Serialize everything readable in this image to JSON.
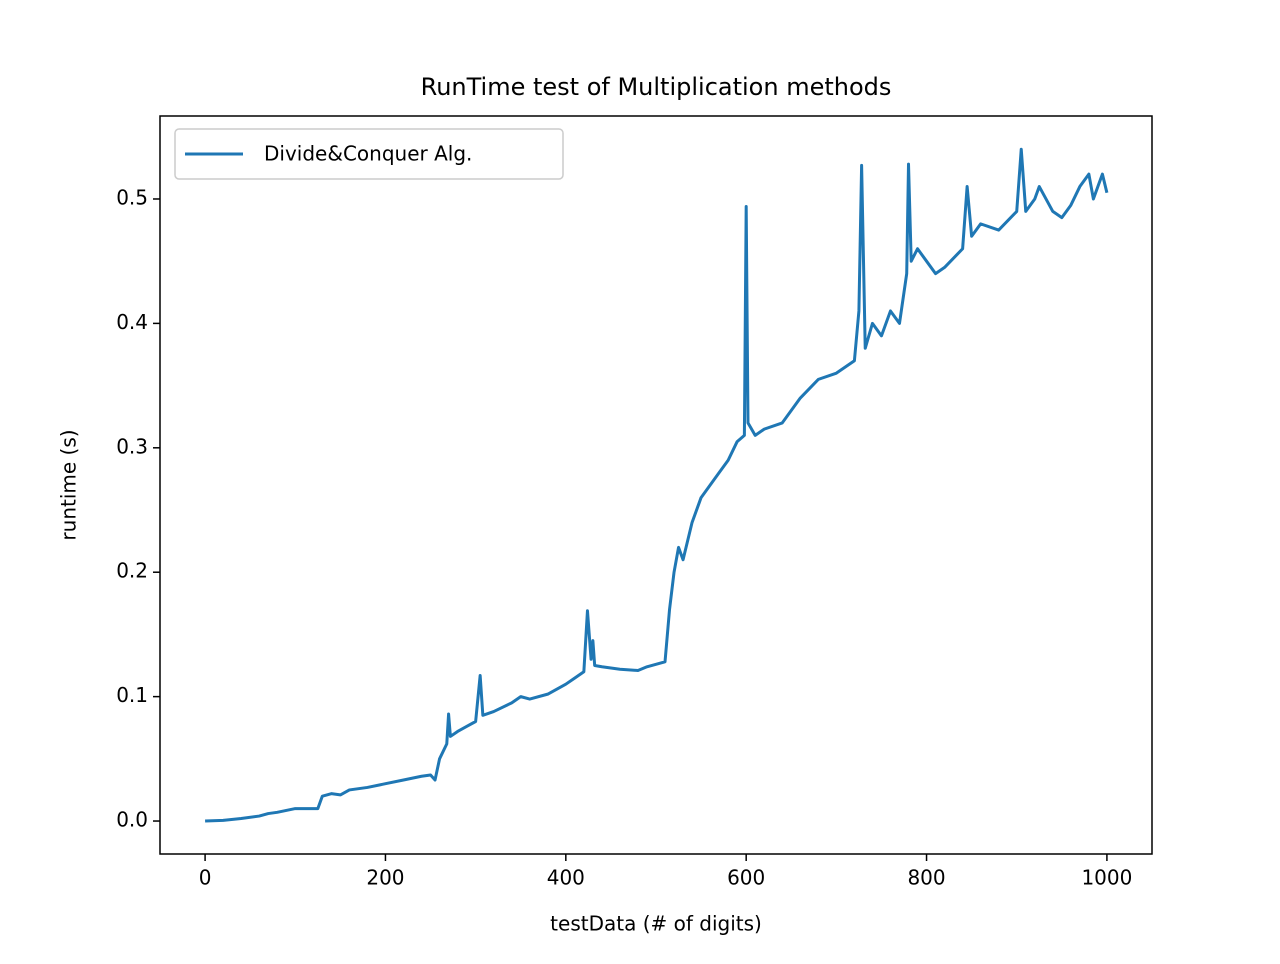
{
  "chart_data": {
    "type": "line",
    "title": "RunTime test of Multiplication methods",
    "x_label": "testData (# of digits)",
    "y_label": "runtime (s)",
    "x": [
      0,
      20,
      40,
      60,
      70,
      80,
      100,
      110,
      125,
      130,
      140,
      150,
      160,
      180,
      200,
      220,
      240,
      250,
      255,
      260,
      268,
      270,
      272,
      280,
      290,
      300,
      305,
      308,
      320,
      340,
      350,
      360,
      380,
      400,
      410,
      420,
      424,
      428,
      430,
      432,
      440,
      460,
      480,
      490,
      500,
      510,
      515,
      520,
      525,
      530,
      540,
      550,
      560,
      570,
      580,
      590,
      598,
      600,
      602,
      610,
      620,
      640,
      660,
      680,
      700,
      720,
      725,
      728,
      732,
      740,
      750,
      760,
      770,
      778,
      780,
      783,
      790,
      800,
      810,
      820,
      840,
      845,
      850,
      860,
      880,
      900,
      905,
      910,
      920,
      925,
      940,
      950,
      960,
      970,
      980,
      985,
      990,
      995,
      1000
    ],
    "series": [
      {
        "name": "Divide&Conquer Alg.",
        "color": "#1f77b4",
        "values": [
          0,
          0.0005,
          0.002,
          0.004,
          0.006,
          0.007,
          0.01,
          0.01,
          0.01,
          0.02,
          0.022,
          0.021,
          0.025,
          0.027,
          0.03,
          0.033,
          0.036,
          0.037,
          0.033,
          0.05,
          0.062,
          0.086,
          0.068,
          0.072,
          0.076,
          0.08,
          0.117,
          0.085,
          0.088,
          0.095,
          0.1,
          0.098,
          0.102,
          0.11,
          0.115,
          0.12,
          0.169,
          0.13,
          0.145,
          0.125,
          0.124,
          0.122,
          0.121,
          0.124,
          0.126,
          0.128,
          0.17,
          0.2,
          0.22,
          0.21,
          0.24,
          0.26,
          0.27,
          0.28,
          0.29,
          0.305,
          0.31,
          0.494,
          0.32,
          0.31,
          0.315,
          0.32,
          0.34,
          0.355,
          0.36,
          0.37,
          0.41,
          0.527,
          0.38,
          0.4,
          0.39,
          0.41,
          0.4,
          0.44,
          0.528,
          0.45,
          0.46,
          0.45,
          0.44,
          0.445,
          0.46,
          0.51,
          0.47,
          0.48,
          0.475,
          0.49,
          0.54,
          0.49,
          0.5,
          0.51,
          0.49,
          0.485,
          0.495,
          0.51,
          0.52,
          0.5,
          0.51,
          0.52,
          0.505
        ]
      }
    ],
    "xlim": [
      -50,
      1050
    ],
    "xticks": [
      0,
      200,
      400,
      600,
      800,
      1000
    ],
    "ylim": [
      -0.0265,
      0.5667
    ],
    "yticks": [
      {
        "value": 0,
        "label": "0.0"
      },
      0.1,
      0.2,
      0.3,
      0.4,
      0.5
    ],
    "legend": "upper-left"
  }
}
